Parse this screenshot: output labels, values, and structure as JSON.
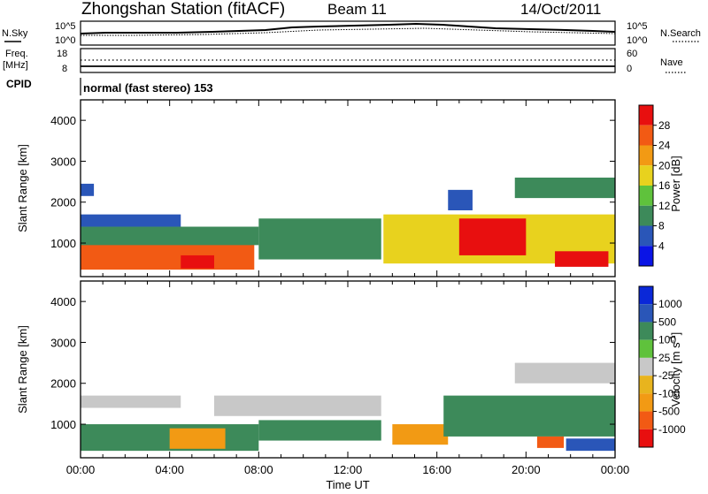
{
  "header": {
    "station": "Zhongshan Station (fitACF)",
    "beam": "Beam 11",
    "date": "14/Oct/2011"
  },
  "noise_panel": {
    "left_label": "N.Sky",
    "right_label": "N.Search",
    "left_ticks": [
      "10^5",
      "10^0"
    ],
    "right_ticks": [
      "10^5",
      "10^0"
    ]
  },
  "freq_panel": {
    "left_label_line1": "Freq.",
    "left_label_line2": "[MHz]",
    "right_label": "Nave",
    "left_ticks": [
      "18",
      "8"
    ],
    "right_ticks": [
      "60",
      "0"
    ]
  },
  "cpid": {
    "label": "CPID",
    "mode_text": "normal (fast stereo) 153"
  },
  "chart_data": [
    {
      "type": "heatmap",
      "title": "",
      "parameter": "Power",
      "ylabel": "Slant Range [km]",
      "ylim": [
        180,
        4500
      ],
      "yticks": [
        "4000",
        "3000",
        "2000",
        "1000"
      ],
      "xlim": [
        "00:00",
        "24:00"
      ],
      "colorbar": {
        "label": "Power [dB]",
        "tick_labels": [
          "28",
          "24",
          "20",
          "16",
          "12",
          "8",
          "4"
        ],
        "levels": [
          {
            "from": 0,
            "to": 4,
            "color": "#0a14e6"
          },
          {
            "from": 4,
            "to": 8,
            "color": "#2a56b8"
          },
          {
            "from": 8,
            "to": 12,
            "color": "#3d8a5a"
          },
          {
            "from": 12,
            "to": 16,
            "color": "#5fc23c"
          },
          {
            "from": 16,
            "to": 20,
            "color": "#e8d21e"
          },
          {
            "from": 20,
            "to": 24,
            "color": "#f29a14"
          },
          {
            "from": 24,
            "to": 28,
            "color": "#f25a14"
          },
          {
            "from": 28,
            "to": 32,
            "color": "#e80f0f"
          }
        ]
      },
      "regions": [
        {
          "t0": 0.0,
          "t1": 7.8,
          "r0": 350,
          "r1": 1000,
          "value": 26
        },
        {
          "t0": 0.0,
          "t1": 8.0,
          "r0": 950,
          "r1": 1400,
          "value": 10
        },
        {
          "t0": 0.0,
          "t1": 4.5,
          "r0": 1400,
          "r1": 1700,
          "value": 7
        },
        {
          "t0": 4.5,
          "t1": 6.0,
          "r0": 380,
          "r1": 700,
          "value": 30
        },
        {
          "t0": 8.0,
          "t1": 13.5,
          "r0": 600,
          "r1": 1600,
          "value": 8
        },
        {
          "t0": 0.0,
          "t1": 0.6,
          "r0": 2150,
          "r1": 2450,
          "value": 6
        },
        {
          "t0": 13.6,
          "t1": 24.0,
          "r0": 500,
          "r1": 1700,
          "value": 16
        },
        {
          "t0": 17.0,
          "t1": 20.0,
          "r0": 700,
          "r1": 1600,
          "value": 28
        },
        {
          "t0": 21.3,
          "t1": 23.7,
          "r0": 420,
          "r1": 800,
          "value": 30
        },
        {
          "t0": 19.5,
          "t1": 24.0,
          "r0": 2100,
          "r1": 2600,
          "value": 9
        },
        {
          "t0": 16.5,
          "t1": 17.6,
          "r0": 1800,
          "r1": 2300,
          "value": 7
        }
      ]
    },
    {
      "type": "heatmap",
      "title": "",
      "parameter": "Velocity",
      "ylabel": "Slant Range [km]",
      "ylim": [
        180,
        4500
      ],
      "yticks": [
        "4000",
        "3000",
        "2000",
        "1000"
      ],
      "xlim": [
        "00:00",
        "24:00"
      ],
      "xticks": [
        "00:00",
        "04:00",
        "08:00",
        "12:00",
        "16:00",
        "20:00",
        "00:00"
      ],
      "xlabel": "Time UT",
      "colorbar": {
        "label": "Velocity [m s",
        "label_superscript": "-1",
        "label_close": "]",
        "tick_labels": [
          "1000",
          "500",
          "100",
          "25",
          "-25",
          "-100",
          "-500",
          "-1000"
        ],
        "levels": [
          {
            "from": -1200,
            "to": -1000,
            "color": "#e80f0f"
          },
          {
            "from": -1000,
            "to": -500,
            "color": "#f25a14"
          },
          {
            "from": -500,
            "to": -100,
            "color": "#f29a14"
          },
          {
            "from": -100,
            "to": -25,
            "color": "#e8b41e"
          },
          {
            "from": -25,
            "to": 25,
            "color": "#c8c8c8"
          },
          {
            "from": 25,
            "to": 100,
            "color": "#5fc23c"
          },
          {
            "from": 100,
            "to": 500,
            "color": "#3d8a5a"
          },
          {
            "from": 500,
            "to": 1000,
            "color": "#2a56b8"
          },
          {
            "from": 1000,
            "to": 1200,
            "color": "#0a28d8"
          }
        ]
      },
      "regions": [
        {
          "t0": 0.0,
          "t1": 8.0,
          "r0": 350,
          "r1": 1000,
          "value": 200
        },
        {
          "t0": 4.0,
          "t1": 6.5,
          "r0": 400,
          "r1": 900,
          "value": -300
        },
        {
          "t0": 0.0,
          "t1": 4.5,
          "r0": 1400,
          "r1": 1700,
          "value": 0
        },
        {
          "t0": 6.0,
          "t1": 13.5,
          "r0": 1200,
          "r1": 1700,
          "value": 0
        },
        {
          "t0": 8.0,
          "t1": 13.5,
          "r0": 600,
          "r1": 1100,
          "value": 200
        },
        {
          "t0": 14.0,
          "t1": 16.5,
          "r0": 500,
          "r1": 1000,
          "value": -300
        },
        {
          "t0": 16.3,
          "t1": 24.0,
          "r0": 700,
          "r1": 1700,
          "value": 200
        },
        {
          "t0": 19.5,
          "t1": 24.0,
          "r0": 2000,
          "r1": 2500,
          "value": 0
        },
        {
          "t0": 20.5,
          "t1": 21.7,
          "r0": 420,
          "r1": 700,
          "value": -700
        },
        {
          "t0": 21.8,
          "t1": 24.0,
          "r0": 350,
          "r1": 650,
          "value": 700
        }
      ]
    }
  ]
}
